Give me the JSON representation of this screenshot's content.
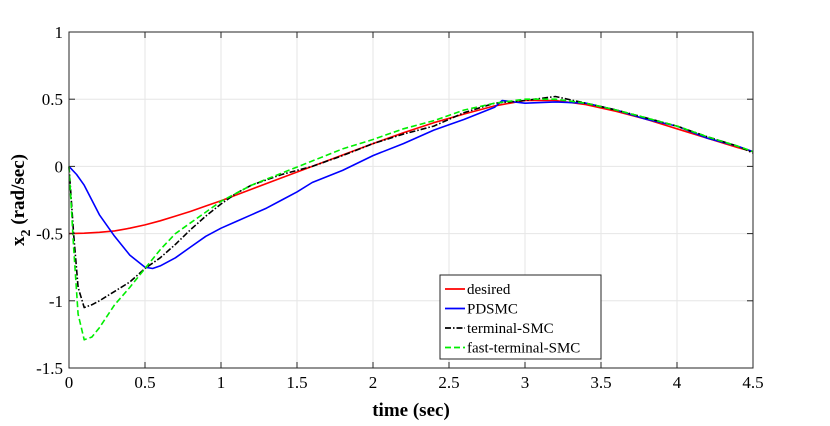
{
  "chart_data": {
    "type": "line",
    "xlabel": "time (sec)",
    "ylabel_main": "x",
    "ylabel_sub": "2",
    "ylabel_unit": "(rad/sec)",
    "xlim": [
      0,
      4.5
    ],
    "ylim": [
      -1.5,
      1
    ],
    "xticks": [
      0,
      0.5,
      1,
      1.5,
      2,
      2.5,
      3,
      3.5,
      4,
      4.5
    ],
    "xtick_labels": [
      "0",
      "0.5",
      "1",
      "1.5",
      "2",
      "2.5",
      "3",
      "3.5",
      "4",
      "4.5"
    ],
    "yticks": [
      -1.5,
      -1,
      -0.5,
      0,
      0.5,
      1
    ],
    "ytick_labels": [
      "-1.5",
      "-1",
      "-0.5",
      "0",
      "0.5",
      "1"
    ],
    "grid": true,
    "legend_position": "bottom-right",
    "series": [
      {
        "name": "desired",
        "color": "#ff0000",
        "style": "solid",
        "x": [
          0,
          0.1,
          0.2,
          0.3,
          0.4,
          0.5,
          0.6,
          0.7,
          0.8,
          0.9,
          1.0,
          1.2,
          1.4,
          1.6,
          1.8,
          2.0,
          2.2,
          2.4,
          2.6,
          2.8,
          3.0,
          3.2,
          3.4,
          3.6,
          3.8,
          4.0,
          4.2,
          4.4,
          4.5
        ],
        "y": [
          -0.5,
          -0.497,
          -0.49,
          -0.48,
          -0.46,
          -0.435,
          -0.405,
          -0.37,
          -0.335,
          -0.295,
          -0.255,
          -0.17,
          -0.085,
          0.0,
          0.085,
          0.17,
          0.25,
          0.325,
          0.39,
          0.45,
          0.49,
          0.49,
          0.46,
          0.41,
          0.35,
          0.28,
          0.21,
          0.14,
          0.11
        ]
      },
      {
        "name": "PDSMC",
        "color": "#0000ff",
        "style": "solid",
        "x": [
          0,
          0.05,
          0.1,
          0.15,
          0.2,
          0.3,
          0.4,
          0.5,
          0.55,
          0.6,
          0.7,
          0.8,
          0.9,
          1.0,
          1.1,
          1.2,
          1.3,
          1.4,
          1.5,
          1.6,
          1.8,
          2.0,
          2.2,
          2.4,
          2.6,
          2.8,
          2.85,
          3.0,
          3.2,
          3.4,
          3.6,
          3.8,
          4.0,
          4.2,
          4.4,
          4.5
        ],
        "y": [
          0.0,
          -0.06,
          -0.14,
          -0.25,
          -0.36,
          -0.52,
          -0.66,
          -0.75,
          -0.76,
          -0.74,
          -0.68,
          -0.6,
          -0.52,
          -0.46,
          -0.41,
          -0.36,
          -0.31,
          -0.25,
          -0.19,
          -0.12,
          -0.03,
          0.08,
          0.17,
          0.27,
          0.35,
          0.44,
          0.49,
          0.47,
          0.48,
          0.47,
          0.42,
          0.35,
          0.3,
          0.21,
          0.15,
          0.11
        ]
      },
      {
        "name": "terminal-SMC",
        "color": "#000000",
        "style": "dashdot",
        "x": [
          0,
          0.03,
          0.06,
          0.1,
          0.15,
          0.2,
          0.3,
          0.4,
          0.5,
          0.6,
          0.7,
          0.8,
          0.9,
          1.0,
          1.1,
          1.2,
          1.3,
          1.4,
          1.5,
          1.6,
          1.8,
          2.0,
          2.2,
          2.4,
          2.6,
          2.8,
          3.0,
          3.2,
          3.4,
          3.6,
          3.8,
          4.0,
          4.2,
          4.4,
          4.5
        ],
        "y": [
          0.0,
          -0.5,
          -0.9,
          -1.05,
          -1.03,
          -1.0,
          -0.93,
          -0.86,
          -0.76,
          -0.68,
          -0.58,
          -0.47,
          -0.37,
          -0.28,
          -0.2,
          -0.14,
          -0.1,
          -0.06,
          -0.03,
          0.0,
          0.08,
          0.17,
          0.24,
          0.3,
          0.4,
          0.47,
          0.49,
          0.52,
          0.47,
          0.42,
          0.36,
          0.3,
          0.22,
          0.15,
          0.1
        ]
      },
      {
        "name": "fast-terminal-SMC",
        "color": "#00ee00",
        "style": "dashed",
        "x": [
          0,
          0.03,
          0.06,
          0.1,
          0.15,
          0.2,
          0.3,
          0.4,
          0.5,
          0.6,
          0.7,
          0.8,
          0.9,
          1.0,
          1.2,
          1.4,
          1.6,
          1.8,
          2.0,
          2.2,
          2.4,
          2.6,
          2.8,
          3.0,
          3.2,
          3.4,
          3.6,
          3.8,
          4.0,
          4.2,
          4.4,
          4.5
        ],
        "y": [
          0.0,
          -0.6,
          -1.1,
          -1.29,
          -1.27,
          -1.2,
          -1.03,
          -0.9,
          -0.76,
          -0.62,
          -0.5,
          -0.42,
          -0.34,
          -0.26,
          -0.14,
          -0.05,
          0.04,
          0.13,
          0.2,
          0.28,
          0.34,
          0.42,
          0.47,
          0.5,
          0.5,
          0.47,
          0.42,
          0.36,
          0.3,
          0.22,
          0.15,
          0.11
        ]
      }
    ]
  }
}
